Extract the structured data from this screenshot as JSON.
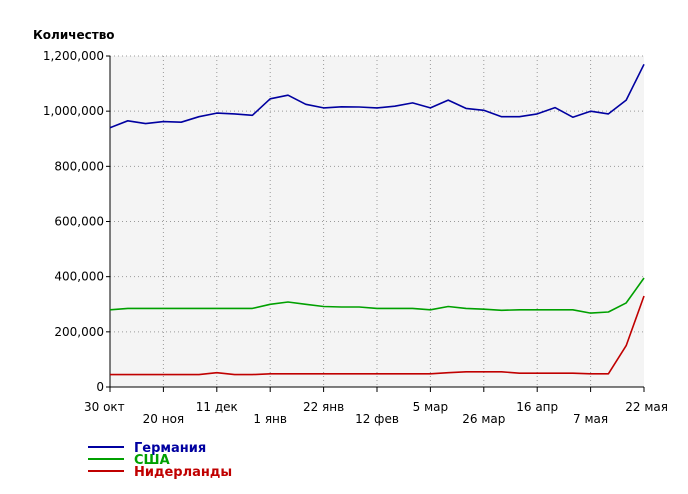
{
  "chart_data": {
    "type": "line",
    "title": "",
    "ylabel": "Количество",
    "xlabel": "",
    "ylim": [
      0,
      1200000
    ],
    "yticks": [
      0,
      200000,
      400000,
      600000,
      800000,
      1000000,
      1200000
    ],
    "ytick_labels": [
      "0",
      "200,000",
      "400,000",
      "600,000",
      "800,000",
      "1,000,000",
      "1,200,000"
    ],
    "xticks": [
      {
        "label": "30 окт",
        "row": 0
      },
      {
        "label": "20 ноя",
        "row": 1
      },
      {
        "label": "11 дек",
        "row": 0
      },
      {
        "label": "1 янв",
        "row": 1
      },
      {
        "label": "22 янв",
        "row": 0
      },
      {
        "label": "12 фев",
        "row": 1
      },
      {
        "label": "5 мар",
        "row": 0
      },
      {
        "label": "26 мар",
        "row": 1
      },
      {
        "label": "16 апр",
        "row": 0
      },
      {
        "label": "7 мая",
        "row": 1
      },
      {
        "label": "22 мая",
        "row": 0
      }
    ],
    "grid": true,
    "legend_position": "bottom-left",
    "series": [
      {
        "name": "Германия",
        "color": "#0000a0",
        "values": [
          940000,
          965000,
          955000,
          962000,
          960000,
          980000,
          993000,
          990000,
          985000,
          1045000,
          1058000,
          1025000,
          1012000,
          1016000,
          1015000,
          1012000,
          1018000,
          1030000,
          1012000,
          1040000,
          1010000,
          1003000,
          980000,
          980000,
          990000,
          1013000,
          978000,
          1000000,
          990000,
          1040000,
          1170000
        ]
      },
      {
        "name": "США",
        "color": "#00a000",
        "values": [
          280000,
          285000,
          285000,
          285000,
          285000,
          285000,
          285000,
          285000,
          285000,
          300000,
          308000,
          300000,
          292000,
          290000,
          290000,
          285000,
          285000,
          285000,
          280000,
          292000,
          285000,
          282000,
          278000,
          280000,
          280000,
          280000,
          280000,
          268000,
          272000,
          305000,
          395000
        ]
      },
      {
        "name": "Нидерланды",
        "color": "#c00000",
        "values": [
          45000,
          45000,
          45000,
          45000,
          45000,
          45000,
          52000,
          45000,
          45000,
          48000,
          48000,
          48000,
          48000,
          48000,
          48000,
          48000,
          48000,
          48000,
          48000,
          52000,
          55000,
          55000,
          55000,
          50000,
          50000,
          50000,
          50000,
          48000,
          48000,
          150000,
          330000
        ]
      }
    ]
  }
}
